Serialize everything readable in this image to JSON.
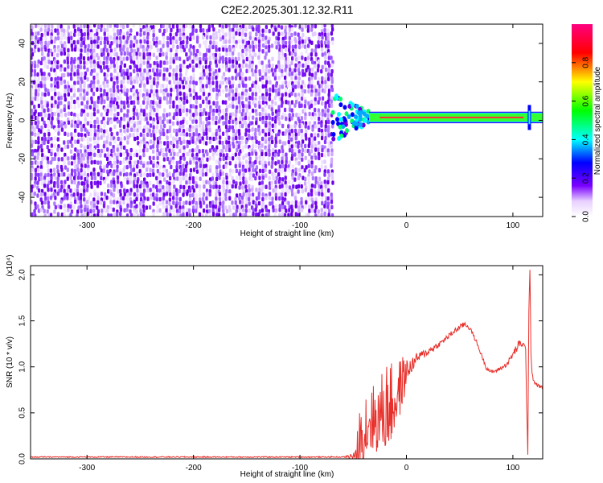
{
  "figure_title": "C2E2.2025.301.12.32.R11",
  "chart_data": [
    {
      "type": "heatmap",
      "title": "C2E2.2025.301.12.32.R11",
      "xlabel": "Height of straight line (km)",
      "ylabel": "Frequency (Hz)",
      "xlim": [
        -353,
        128
      ],
      "ylim": [
        -50,
        50
      ],
      "x_ticks": [
        -300,
        -200,
        -100,
        0,
        100
      ],
      "y_ticks": [
        -40,
        -20,
        0,
        20,
        40
      ],
      "x_tick_labels": [
        "-300",
        "-200",
        "-100",
        "0",
        "100"
      ],
      "y_tick_labels": [
        "-40",
        "-20",
        "0",
        "20",
        "40"
      ],
      "noise_region_x": [
        -353,
        -68
      ],
      "transition_region_x": [
        -70,
        -35
      ],
      "signal_band": {
        "x_start": -35,
        "x_end": 128,
        "center_hz": 1.5,
        "half_width_hz": 3
      },
      "colorbar": {
        "label": "Normalized spectral amplitude",
        "range": [
          0,
          1
        ],
        "ticks": [
          0.0,
          0.2,
          0.4,
          0.6,
          0.8
        ],
        "tick_labels": [
          "0.0",
          "0.2",
          "0.4",
          "0.6",
          "0.8"
        ],
        "colors": [
          "#ffffff",
          "#7a00ff",
          "#0000ff",
          "#00ffff",
          "#00ff00",
          "#ffff00",
          "#ff0000",
          "#ff0080"
        ]
      },
      "grid": false
    },
    {
      "type": "line",
      "xlabel": "Height of straight line (km)",
      "ylabel": "SNR (10 * v/v)",
      "y_scale_label": "(x10⁴)",
      "xlim": [
        -353,
        128
      ],
      "ylim": [
        0,
        2.1
      ],
      "x_ticks": [
        -300,
        -200,
        -100,
        0,
        100
      ],
      "y_ticks": [
        0.0,
        0.5,
        1.0,
        1.5,
        2.0
      ],
      "x_tick_labels": [
        "-300",
        "-200",
        "-100",
        "0",
        "100"
      ],
      "y_tick_labels": [
        "0.0",
        "0.5",
        "1.0",
        "1.5",
        "2.0"
      ],
      "line_color": "#e8302b",
      "grid": false,
      "series": [
        {
          "x": [
            -353,
            -300,
            -250,
            -200,
            -150,
            -100,
            -60,
            -48,
            -44,
            -40,
            -36,
            -32,
            -28,
            -24,
            -20,
            -16,
            -12,
            -8,
            -4,
            0,
            5,
            10,
            15,
            20,
            25,
            30,
            35,
            40,
            45,
            50,
            55,
            60,
            65,
            70,
            75,
            80,
            85,
            90,
            95,
            100,
            105,
            108,
            110,
            112,
            113,
            114,
            115,
            116,
            117,
            118,
            120,
            124,
            128
          ],
          "y": [
            0.02,
            0.02,
            0.02,
            0.02,
            0.02,
            0.02,
            0.02,
            0.05,
            0.3,
            0.5,
            0.6,
            0.6,
            0.55,
            0.65,
            0.75,
            0.8,
            0.75,
            0.85,
            0.95,
            1.0,
            1.05,
            1.12,
            1.15,
            1.18,
            1.22,
            1.25,
            1.3,
            1.35,
            1.4,
            1.44,
            1.48,
            1.42,
            1.3,
            1.15,
            1.0,
            0.95,
            0.97,
            1.0,
            1.05,
            1.15,
            1.25,
            1.28,
            1.25,
            1.2,
            0.6,
            0.05,
            1.6,
            2.05,
            1.2,
            0.95,
            0.85,
            0.8,
            0.78
          ],
          "spike_amplitude": [
            0,
            0,
            0,
            0,
            0,
            0,
            0,
            0.05,
            0.45,
            0.5,
            0.45,
            0.4,
            0.35,
            0.45,
            0.5,
            0.5,
            0.4,
            0.35,
            0.3,
            0.15,
            0.08,
            0.06,
            0.05,
            0.04,
            0.04,
            0.03,
            0.03,
            0.03,
            0.03,
            0.03,
            0.03,
            0.02,
            0.02,
            0.02,
            0.02,
            0.02,
            0.02,
            0.02,
            0.03,
            0.04,
            0.05,
            0.05,
            0.05,
            0.05,
            0.05,
            0,
            0,
            0,
            0.05,
            0.04,
            0.03,
            0.02,
            0.02
          ]
        }
      ]
    }
  ]
}
